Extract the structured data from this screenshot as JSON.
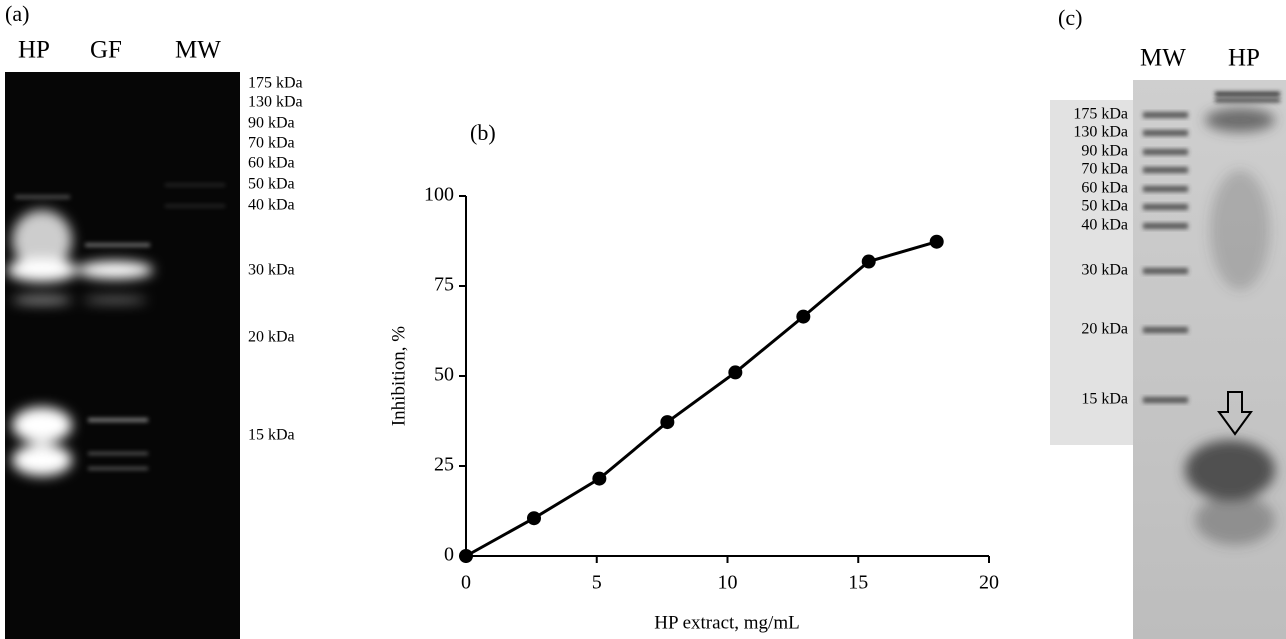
{
  "gel_a": {
    "label": "(a)",
    "lanes": [
      "HP",
      "GF",
      "MW"
    ],
    "markers": [
      "175 kDa",
      "130 kDa",
      "90 kDa",
      "70 kDa",
      "60 kDa",
      "50 kDa",
      "40 kDa",
      "30 kDa",
      "20 kDa",
      "15 kDa"
    ]
  },
  "chart_data": {
    "type": "line",
    "title": "(b)",
    "x_label": "HP extract, mg/mL",
    "y_label": "Inhibition, %",
    "x": [
      0,
      2.6,
      5.1,
      7.7,
      10.3,
      12.9,
      15.4,
      18.0
    ],
    "series": [
      {
        "color": "#000000",
        "values": [
          0,
          10.5,
          21.5,
          37.2,
          51,
          66.5,
          81.8,
          87.3
        ]
      }
    ],
    "xlim": [
      0,
      20
    ],
    "xticks": [
      0,
      5,
      10,
      15,
      20
    ],
    "ylim": [
      0,
      100
    ],
    "yticks": [
      0,
      25,
      50,
      75,
      100
    ],
    "grid": false
  },
  "gel_c": {
    "label": "(c)",
    "lanes": [
      "MW",
      "HP"
    ],
    "markers": [
      "175 kDa",
      "130 kDa",
      "90 kDa",
      "70 kDa",
      "60 kDa",
      "50 kDa",
      "40 kDa",
      "30 kDa",
      "20 kDa",
      "15 kDa"
    ]
  }
}
